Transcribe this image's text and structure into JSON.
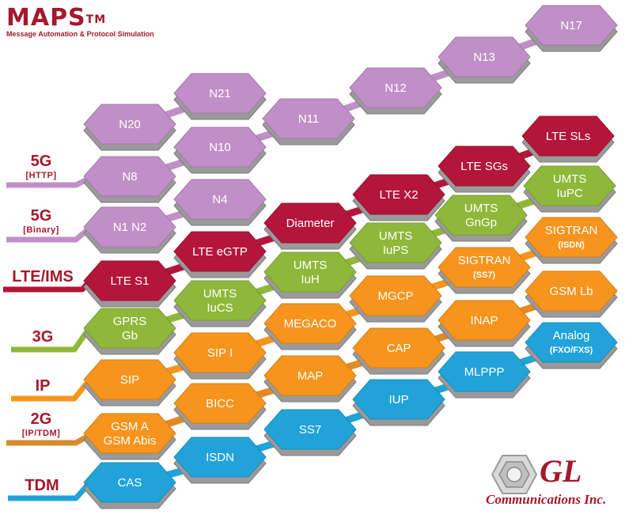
{
  "brand": {
    "title": "MAPS",
    "trademark": "TM",
    "subtitle": "Message Automation & Protocol Simulation",
    "color": "#a5182a"
  },
  "rows": [
    {
      "id": "5g-http",
      "label": "5G",
      "sublabel": "[HTTP]",
      "color": "#c59ac9",
      "label_color": "#a5182a"
    },
    {
      "id": "5g-binary",
      "label": "5G",
      "sublabel": "[Binary]",
      "color": "#c59ac9",
      "label_color": "#a5182a"
    },
    {
      "id": "lte-ims",
      "label": "LTE/IMS",
      "sublabel": "",
      "color": "#b0213a",
      "label_color": "#a5182a"
    },
    {
      "id": "3g",
      "label": "3G",
      "sublabel": "",
      "color": "#8dba3a",
      "label_color": "#a5182a"
    },
    {
      "id": "ip",
      "label": "IP",
      "sublabel": "",
      "color": "#f7931e",
      "label_color": "#a5182a"
    },
    {
      "id": "2g",
      "label": "2G",
      "sublabel": "[IP/TDM]",
      "color": "#d88b2a",
      "label_color": "#a5182a"
    },
    {
      "id": "tdm",
      "label": "TDM",
      "sublabel": "",
      "color": "#2ba6d8",
      "label_color": "#a5182a"
    }
  ],
  "hexagons": [
    {
      "id": "N17",
      "text": [
        "N17"
      ],
      "color": "purple"
    },
    {
      "id": "N13",
      "text": [
        "N13"
      ],
      "color": "purple"
    },
    {
      "id": "N12",
      "text": [
        "N12"
      ],
      "color": "purple"
    },
    {
      "id": "N21",
      "text": [
        "N21"
      ],
      "color": "purple"
    },
    {
      "id": "N11",
      "text": [
        "N11"
      ],
      "color": "purple"
    },
    {
      "id": "N20",
      "text": [
        "N20"
      ],
      "color": "purple"
    },
    {
      "id": "N10",
      "text": [
        "N10"
      ],
      "color": "purple"
    },
    {
      "id": "N8",
      "text": [
        "N8"
      ],
      "color": "purple"
    },
    {
      "id": "N4",
      "text": [
        "N4"
      ],
      "color": "purple"
    },
    {
      "id": "N1N2",
      "text": [
        "N1 N2"
      ],
      "color": "purple"
    },
    {
      "id": "LTE-SLs",
      "text": [
        "LTE SLs"
      ],
      "color": "red"
    },
    {
      "id": "LTE-SGs",
      "text": [
        "LTE SGs"
      ],
      "color": "red"
    },
    {
      "id": "LTE-X2",
      "text": [
        "LTE X2"
      ],
      "color": "red"
    },
    {
      "id": "Diameter",
      "text": [
        "Diameter"
      ],
      "color": "red"
    },
    {
      "id": "LTE-eGTP",
      "text": [
        "LTE eGTP"
      ],
      "color": "red"
    },
    {
      "id": "LTE-S1",
      "text": [
        "LTE S1"
      ],
      "color": "red"
    },
    {
      "id": "UMTS-IuPC",
      "text": [
        "UMTS",
        "IuPC"
      ],
      "color": "green"
    },
    {
      "id": "UMTS-GnGp",
      "text": [
        "UMTS",
        "GnGp"
      ],
      "color": "green"
    },
    {
      "id": "UMTS-IuPS",
      "text": [
        "UMTS",
        "IuPS"
      ],
      "color": "green"
    },
    {
      "id": "UMTS-IuH",
      "text": [
        "UMTS",
        "IuH"
      ],
      "color": "green"
    },
    {
      "id": "UMTS-IuCS",
      "text": [
        "UMTS",
        "IuCS"
      ],
      "color": "green"
    },
    {
      "id": "GPRS-Gb",
      "text": [
        "GPRS",
        "Gb"
      ],
      "color": "green"
    },
    {
      "id": "SIGTRAN-ISDN",
      "text": [
        "SIGTRAN",
        "(ISDN)"
      ],
      "color": "orange"
    },
    {
      "id": "SIGTRAN-SS7",
      "text": [
        "SIGTRAN",
        "(SS7)"
      ],
      "color": "orange"
    },
    {
      "id": "MGCP",
      "text": [
        "MGCP"
      ],
      "color": "orange"
    },
    {
      "id": "MEGACO",
      "text": [
        "MEGACO"
      ],
      "color": "orange"
    },
    {
      "id": "SIP-I",
      "text": [
        "SIP I"
      ],
      "color": "orange"
    },
    {
      "id": "SIP",
      "text": [
        "SIP"
      ],
      "color": "orange"
    },
    {
      "id": "GSM-Lb",
      "text": [
        "GSM Lb"
      ],
      "color": "orange"
    },
    {
      "id": "INAP",
      "text": [
        "INAP"
      ],
      "color": "orange"
    },
    {
      "id": "CAP",
      "text": [
        "CAP"
      ],
      "color": "orange"
    },
    {
      "id": "MAP",
      "text": [
        "MAP"
      ],
      "color": "orange"
    },
    {
      "id": "BICC",
      "text": [
        "BICC"
      ],
      "color": "orange"
    },
    {
      "id": "GSM-A",
      "text": [
        "GSM A",
        "GSM Abis"
      ],
      "color": "orange"
    },
    {
      "id": "Analog",
      "text": [
        "Analog",
        "(FXO/FXS)"
      ],
      "color": "blue"
    },
    {
      "id": "MLPPP",
      "text": [
        "MLPPP"
      ],
      "color": "blue"
    },
    {
      "id": "IUP",
      "text": [
        "IUP"
      ],
      "color": "blue"
    },
    {
      "id": "SS7",
      "text": [
        "SS7"
      ],
      "color": "blue"
    },
    {
      "id": "ISDN",
      "text": [
        "ISDN"
      ],
      "color": "blue"
    },
    {
      "id": "CAS",
      "text": [
        "CAS"
      ],
      "color": "blue"
    }
  ],
  "palette": {
    "purple": "#c18fc7",
    "red": "#b3163a",
    "green": "#8fb83a",
    "orange": "#f7941d",
    "blue": "#21a3d9",
    "side": "#9a9a9a",
    "side_dark": "#7d7d7d"
  },
  "logo": {
    "letters": "GL",
    "company": "Communications Inc.",
    "color": "#a5182a",
    "icon": "hexagon-nut-icon"
  }
}
